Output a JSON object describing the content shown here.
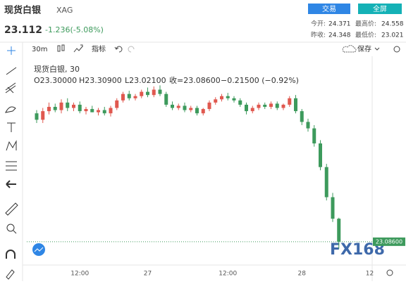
{
  "header": {
    "title": "现货白银",
    "symbol": "XAG",
    "trade_button": "交易",
    "fullscreen_button": "全屏",
    "price": "23.112",
    "change": "-1.236(-5.08%)",
    "stats": [
      {
        "label": "今开:",
        "value": "24.371"
      },
      {
        "label": "最高价:",
        "value": "24.558"
      },
      {
        "label": "昨收:",
        "value": "24.348"
      },
      {
        "label": "最低价:",
        "value": "23.021"
      }
    ]
  },
  "toolbar": {
    "interval": "30m",
    "indicators": "指标",
    "save": "保存"
  },
  "chart_data": {
    "type": "candlestick",
    "legend": {
      "name": "现货白银, 30",
      "open": "O23.30000",
      "high": "H23.30900",
      "low": "L23.02100",
      "close": "收=23.08600",
      "change": "−0.21500 (−0.92%)"
    },
    "categories": [
      null,
      null,
      null,
      null,
      null,
      null,
      null,
      "12:00",
      null,
      null,
      null,
      null,
      null,
      null,
      null,
      null,
      null,
      null,
      "27",
      null,
      null,
      null,
      null,
      null,
      null,
      null,
      null,
      null,
      null,
      null,
      null,
      "12:00",
      null,
      null,
      null,
      null,
      null,
      null,
      null,
      null,
      null,
      null,
      null,
      "28",
      null,
      null,
      null,
      null,
      null,
      null,
      null,
      null,
      null,
      null,
      "12",
      null
    ],
    "open": [
      24.28,
      24.22,
      24.3,
      24.34,
      24.31,
      24.38,
      24.33,
      24.36,
      24.3,
      24.32,
      24.29,
      24.31,
      24.28,
      24.33,
      24.4,
      24.46,
      24.42,
      24.44,
      24.48,
      24.45,
      24.5,
      24.46,
      24.36,
      24.33,
      24.35,
      24.31,
      24.33,
      24.28,
      24.32,
      24.38,
      24.41,
      24.44,
      24.42,
      24.4,
      24.36,
      24.3,
      24.33,
      24.36,
      24.34,
      24.37,
      24.33,
      24.36,
      24.42,
      24.3,
      24.2,
      24.14,
      24.0,
      23.78,
      23.5,
      23.3,
      null,
      null,
      null,
      null,
      null,
      null
    ],
    "high": [
      24.31,
      24.33,
      24.38,
      24.37,
      24.41,
      24.42,
      24.38,
      24.39,
      24.34,
      24.35,
      24.33,
      24.34,
      24.35,
      24.42,
      24.48,
      24.49,
      24.46,
      24.5,
      24.52,
      24.53,
      24.54,
      24.48,
      24.39,
      24.37,
      24.38,
      24.35,
      24.35,
      24.33,
      24.4,
      24.43,
      24.46,
      24.47,
      24.44,
      24.42,
      24.38,
      24.35,
      24.38,
      24.38,
      24.39,
      24.39,
      24.37,
      24.44,
      24.45,
      24.32,
      24.23,
      24.17,
      24.03,
      23.81,
      23.54,
      23.309,
      null,
      null,
      null,
      null,
      null,
      null
    ],
    "low": [
      24.19,
      24.19,
      24.27,
      24.29,
      24.28,
      24.3,
      24.3,
      24.28,
      24.27,
      24.29,
      24.26,
      24.26,
      24.25,
      24.31,
      24.38,
      24.4,
      24.4,
      24.42,
      24.43,
      24.43,
      24.44,
      24.34,
      24.31,
      24.31,
      24.29,
      24.29,
      24.26,
      24.26,
      24.3,
      24.36,
      24.39,
      24.4,
      24.38,
      24.34,
      24.27,
      24.28,
      24.31,
      24.32,
      24.32,
      24.31,
      24.31,
      24.34,
      24.28,
      24.17,
      24.11,
      23.97,
      23.75,
      23.47,
      23.27,
      23.021,
      null,
      null,
      null,
      null,
      null,
      null
    ],
    "close": [
      24.22,
      24.3,
      24.34,
      24.31,
      24.38,
      24.33,
      24.36,
      24.3,
      24.32,
      24.29,
      24.31,
      24.28,
      24.33,
      24.4,
      24.46,
      24.42,
      24.44,
      24.48,
      24.45,
      24.5,
      24.46,
      24.36,
      24.33,
      24.35,
      24.31,
      24.33,
      24.28,
      24.32,
      24.38,
      24.41,
      24.44,
      24.42,
      24.4,
      24.36,
      24.3,
      24.33,
      24.36,
      24.34,
      24.37,
      24.33,
      24.36,
      24.42,
      24.3,
      24.2,
      24.14,
      24.0,
      23.78,
      23.5,
      23.3,
      23.086,
      null,
      null,
      null,
      null,
      null,
      null
    ],
    "up_color": "#e0584f",
    "down_color": "#3d9a5c",
    "ylim": [
      23.0,
      24.68
    ],
    "last_price_label": "23.08600",
    "watermark": "FX168"
  }
}
